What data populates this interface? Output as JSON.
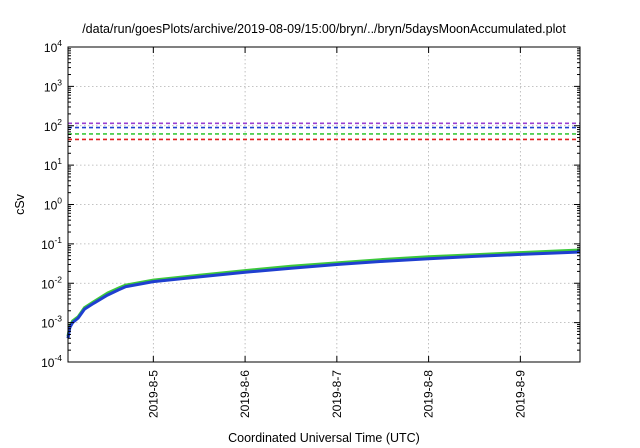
{
  "chart_data": {
    "type": "line",
    "title": "/data/run/goesPlots/archive/2019-08-09/15:00/bryn/../bryn/5daysMoonAccumulated.plot",
    "xlabel": "Coordinated Universal Time (UTC)",
    "ylabel": "cSv",
    "yscale": "log",
    "ylim": [
      0.0001,
      10000
    ],
    "xlim": [
      4.07,
      9.65
    ],
    "grid": true,
    "y_ticks": [
      {
        "base": "10",
        "exp": "-4",
        "value": 0.0001
      },
      {
        "base": "10",
        "exp": "-3",
        "value": 0.001
      },
      {
        "base": "10",
        "exp": "-2",
        "value": 0.01
      },
      {
        "base": "10",
        "exp": "-1",
        "value": 0.1
      },
      {
        "base": "10",
        "exp": "0",
        "value": 1
      },
      {
        "base": "10",
        "exp": "1",
        "value": 10
      },
      {
        "base": "10",
        "exp": "2",
        "value": 100
      },
      {
        "base": "10",
        "exp": "3",
        "value": 1000
      },
      {
        "base": "10",
        "exp": "4",
        "value": 10000
      }
    ],
    "x_ticks": [
      {
        "label": "2019-8-5",
        "value": 5
      },
      {
        "label": "2019-8-6",
        "value": 6
      },
      {
        "label": "2019-8-7",
        "value": 7
      },
      {
        "label": "2019-8-8",
        "value": 8
      },
      {
        "label": "2019-8-9",
        "value": 9
      }
    ],
    "reference_lines": [
      {
        "value": 115,
        "color": "#9a3fd0",
        "style": "dashed"
      },
      {
        "value": 90,
        "color": "#1f3fd0",
        "style": "dashed"
      },
      {
        "value": 62,
        "color": "#3cc83c",
        "style": "dashed"
      },
      {
        "value": 45,
        "color": "#e02020",
        "style": "dashed"
      }
    ],
    "series": [
      {
        "color": "#3cc83c",
        "x": [
          4.07,
          4.09,
          4.12,
          4.18,
          4.25,
          4.35,
          4.5,
          4.62,
          4.7,
          5.0,
          5.5,
          6.0,
          6.5,
          7.0,
          7.5,
          8.0,
          8.5,
          9.0,
          9.65
        ],
        "y": [
          0.00045,
          0.0008,
          0.0011,
          0.0014,
          0.0024,
          0.0034,
          0.0056,
          0.0075,
          0.009,
          0.012,
          0.016,
          0.021,
          0.027,
          0.033,
          0.04,
          0.047,
          0.053,
          0.06,
          0.07
        ]
      },
      {
        "color": "#1f3fd0",
        "x": [
          4.07,
          4.09,
          4.12,
          4.18,
          4.25,
          4.35,
          4.5,
          4.62,
          4.7,
          5.0,
          5.5,
          6.0,
          6.5,
          7.0,
          7.5,
          8.0,
          8.5,
          9.0,
          9.65
        ],
        "y": [
          0.0004,
          0.00075,
          0.001,
          0.0013,
          0.0022,
          0.0031,
          0.005,
          0.0068,
          0.0082,
          0.011,
          0.0145,
          0.019,
          0.024,
          0.03,
          0.036,
          0.042,
          0.048,
          0.054,
          0.062
        ]
      }
    ]
  }
}
